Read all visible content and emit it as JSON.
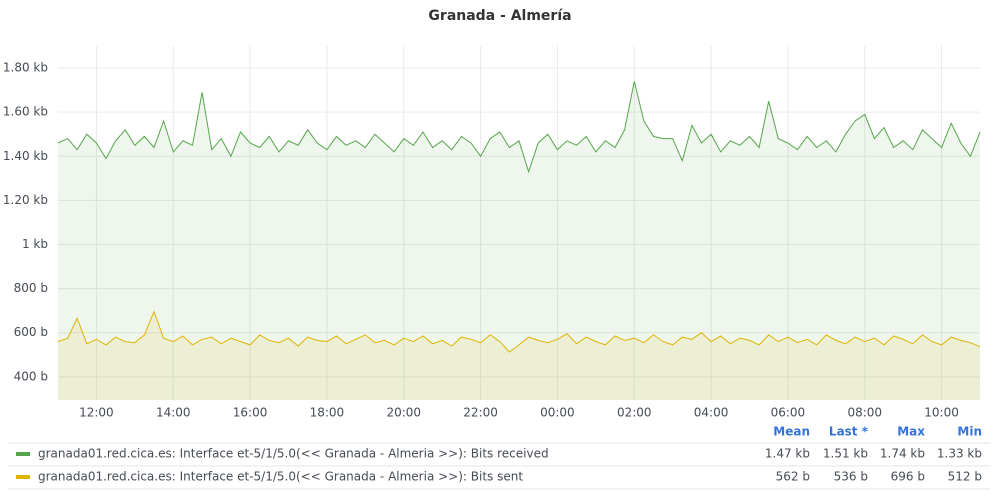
{
  "chart_data": {
    "type": "line",
    "title": "Granada - Almería",
    "x": [
      11,
      11.25,
      11.5,
      11.75,
      12,
      12.25,
      12.5,
      12.75,
      13,
      13.25,
      13.5,
      13.75,
      14,
      14.25,
      14.5,
      14.75,
      15,
      15.25,
      15.5,
      15.75,
      16,
      16.25,
      16.5,
      16.75,
      17,
      17.25,
      17.5,
      17.75,
      18,
      18.25,
      18.5,
      18.75,
      19,
      19.25,
      19.5,
      19.75,
      20,
      20.25,
      20.5,
      20.75,
      21,
      21.25,
      21.5,
      21.75,
      22,
      22.25,
      22.5,
      22.75,
      23,
      23.25,
      23.5,
      23.75,
      24,
      24.25,
      24.5,
      24.75,
      25,
      25.25,
      25.5,
      25.75,
      26,
      26.25,
      26.5,
      26.75,
      27,
      27.25,
      27.5,
      27.75,
      28,
      28.25,
      28.5,
      28.75,
      29,
      29.25,
      29.5,
      29.75,
      30,
      30.25,
      30.5,
      30.75,
      31,
      31.25,
      31.5,
      31.75,
      32,
      32.25,
      32.5,
      32.75,
      33,
      33.25,
      33.5,
      33.75,
      34,
      34.25,
      34.5,
      34.75,
      35
    ],
    "xlim": [
      11,
      35
    ],
    "xticks": [
      {
        "value": 12,
        "label": "12:00"
      },
      {
        "value": 14,
        "label": "14:00"
      },
      {
        "value": 16,
        "label": "16:00"
      },
      {
        "value": 18,
        "label": "18:00"
      },
      {
        "value": 20,
        "label": "20:00"
      },
      {
        "value": 22,
        "label": "22:00"
      },
      {
        "value": 24,
        "label": "00:00"
      },
      {
        "value": 26,
        "label": "02:00"
      },
      {
        "value": 28,
        "label": "04:00"
      },
      {
        "value": 30,
        "label": "06:00"
      },
      {
        "value": 32,
        "label": "08:00"
      },
      {
        "value": 34,
        "label": "10:00"
      }
    ],
    "ylim": [
      295,
      1900
    ],
    "yticks": [
      {
        "value": 400,
        "label": "400 b"
      },
      {
        "value": 600,
        "label": "600 b"
      },
      {
        "value": 800,
        "label": "800 b"
      },
      {
        "value": 1000,
        "label": "1 kb"
      },
      {
        "value": 1200,
        "label": "1.20 kb"
      },
      {
        "value": 1400,
        "label": "1.40 kb"
      },
      {
        "value": 1600,
        "label": "1.60 kb"
      },
      {
        "value": 1800,
        "label": "1.80 kb"
      }
    ],
    "grid": true,
    "stat_headers": [
      "Mean",
      "Last *",
      "Max",
      "Min"
    ],
    "series": [
      {
        "name": "granada01.red.cica.es: Interface et-5/1/5.0(<< Granada - Almeria >>): Bits received",
        "color": "#56a64b",
        "values": [
          1460,
          1480,
          1430,
          1500,
          1460,
          1390,
          1470,
          1520,
          1450,
          1490,
          1440,
          1560,
          1420,
          1470,
          1450,
          1690,
          1430,
          1480,
          1400,
          1510,
          1460,
          1440,
          1490,
          1420,
          1470,
          1450,
          1520,
          1460,
          1430,
          1490,
          1450,
          1470,
          1440,
          1500,
          1460,
          1420,
          1480,
          1450,
          1510,
          1440,
          1470,
          1430,
          1490,
          1460,
          1400,
          1480,
          1510,
          1440,
          1470,
          1330,
          1460,
          1500,
          1430,
          1470,
          1450,
          1490,
          1420,
          1470,
          1440,
          1520,
          1740,
          1560,
          1490,
          1480,
          1480,
          1380,
          1540,
          1460,
          1500,
          1420,
          1470,
          1450,
          1490,
          1440,
          1650,
          1480,
          1460,
          1430,
          1490,
          1440,
          1470,
          1420,
          1500,
          1560,
          1590,
          1480,
          1530,
          1440,
          1470,
          1430,
          1520,
          1480,
          1440,
          1550,
          1460,
          1400,
          1510
        ],
        "stats": [
          "1.47 kb",
          "1.51 kb",
          "1.74 kb",
          "1.33 kb"
        ]
      },
      {
        "name": "granada01.red.cica.es: Interface et-5/1/5.0(<< Granada - Almeria >>): Bits sent",
        "color": "#e0b400",
        "values": [
          560,
          575,
          665,
          550,
          570,
          545,
          580,
          560,
          555,
          590,
          696,
          575,
          560,
          585,
          545,
          570,
          580,
          550,
          575,
          560,
          545,
          590,
          565,
          555,
          575,
          540,
          580,
          565,
          560,
          585,
          550,
          570,
          590,
          555,
          565,
          545,
          575,
          560,
          585,
          550,
          565,
          540,
          580,
          570,
          555,
          590,
          560,
          512,
          545,
          580,
          565,
          555,
          570,
          595,
          550,
          580,
          560,
          545,
          585,
          565,
          575,
          555,
          590,
          560,
          545,
          580,
          570,
          600,
          560,
          585,
          550,
          575,
          565,
          545,
          590,
          560,
          580,
          555,
          570,
          545,
          590,
          565,
          550,
          580,
          560,
          575,
          545,
          585,
          570,
          550,
          590,
          560,
          545,
          580,
          565,
          555,
          536
        ],
        "stats": [
          "562 b",
          "536 b",
          "696 b",
          "512 b"
        ]
      }
    ]
  }
}
